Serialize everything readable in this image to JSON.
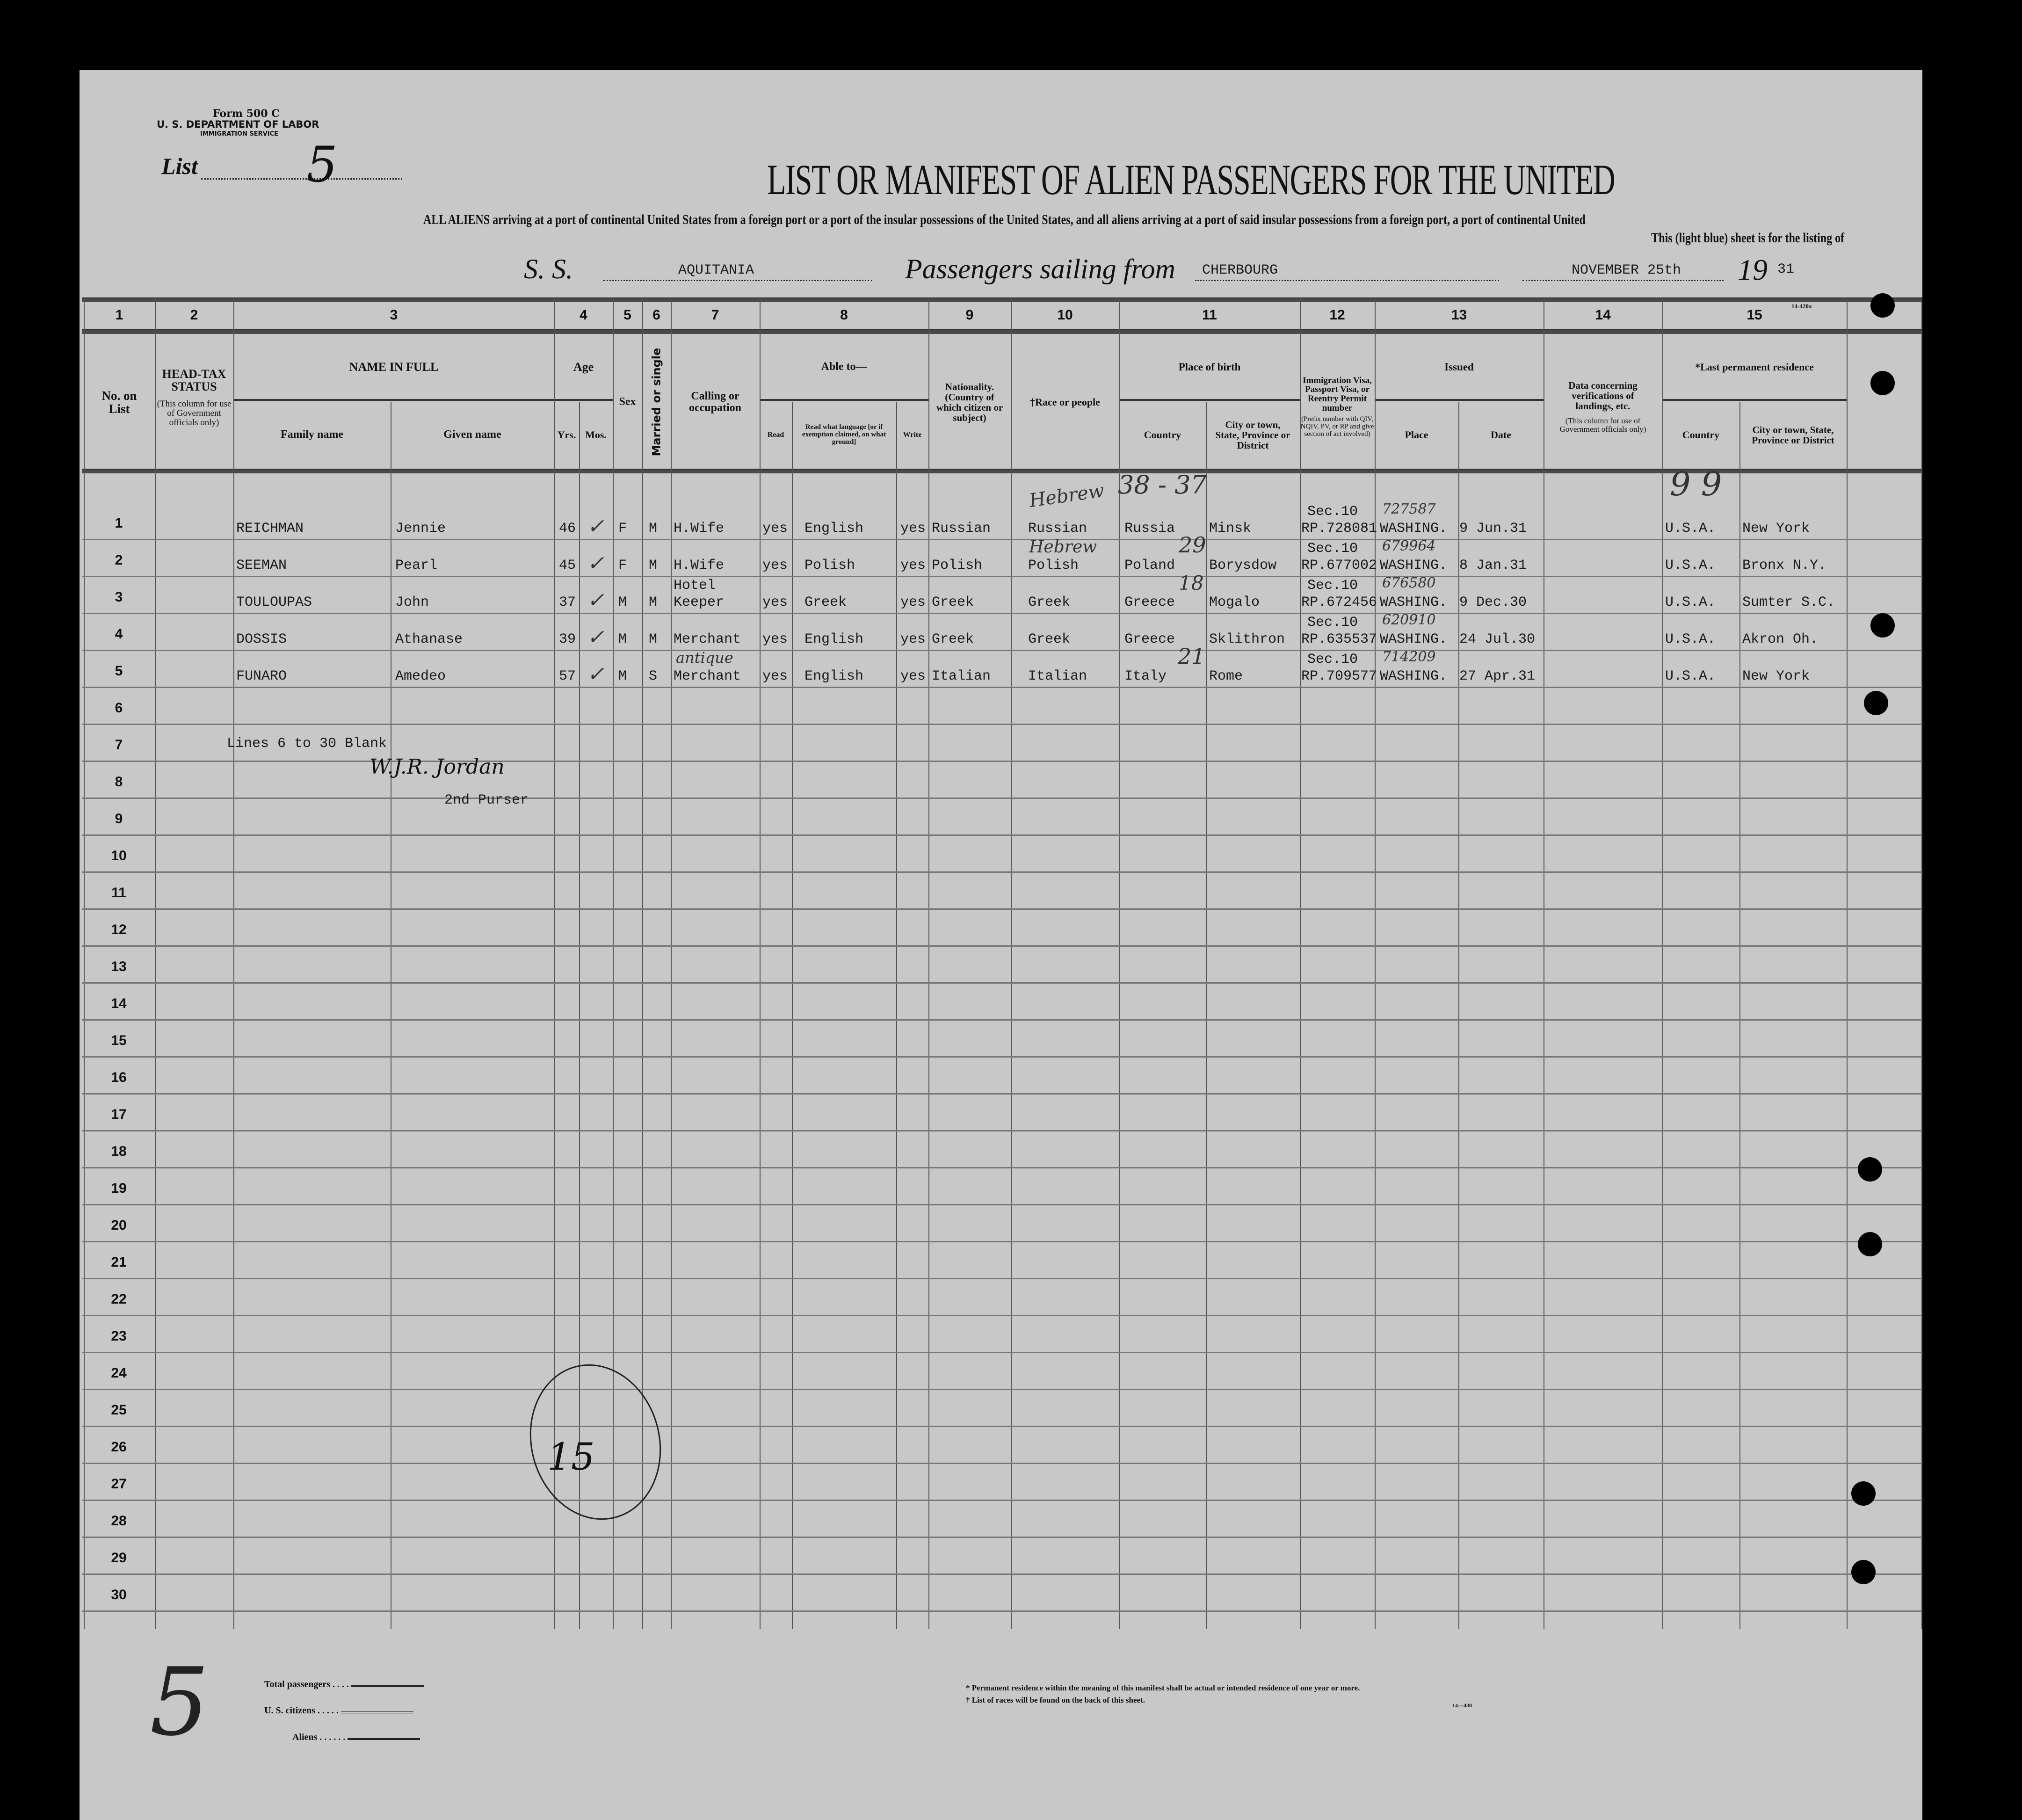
{
  "form": {
    "form_number": "Form 500 C",
    "department": "U. S. DEPARTMENT OF LABOR",
    "service": "IMMIGRATION SERVICE",
    "list_label": "List",
    "list_number": "5"
  },
  "title": "LIST OR MANIFEST OF ALIEN PASSENGERS FOR THE UNITED",
  "subtitle_line1": "ALL ALIENS arriving at a port of continental United States from a foreign port or a port of the insular possessions of the United States, and all aliens arriving at a port of said insular possessions from a foreign port, a port of continental United",
  "subtitle_line2": "This (light blue) sheet is for the listing of",
  "voyage": {
    "ss_label": "S. S.",
    "ship": "AQUITANIA",
    "sailing_label": "Passengers sailing from",
    "port": "CHERBOURG",
    "date": "NOVEMBER 25th",
    "year_prefix": "19",
    "year_suffix": "31"
  },
  "form_code_top": "14-420a",
  "column_numbers": [
    "1",
    "2",
    "3",
    "4",
    "5",
    "6",
    "7",
    "8",
    "9",
    "10",
    "11",
    "12",
    "13",
    "14",
    "15"
  ],
  "headers": {
    "no_on_list": "No. on List",
    "head_tax": "HEAD-TAX STATUS",
    "head_tax_note": "(This column for use of Government officials only)",
    "name_in_full": "NAME IN FULL",
    "family_name": "Family name",
    "given_name": "Given name",
    "age": "Age",
    "yrs": "Yrs.",
    "mos": "Mos.",
    "sex": "Sex",
    "married": "Married or single",
    "calling": "Calling or occupation",
    "able_to": "Able to—",
    "read": "Read",
    "read_lang": "Read what language [or if exemption claimed, on what ground]",
    "write": "Write",
    "nationality": "Nationality. (Country of which citizen or subject)",
    "race": "†Race or people",
    "place_of_birth": "Place of birth",
    "birth_country": "Country",
    "birth_city": "City or town, State, Province or District",
    "visa": "Immigration Visa, Passport Visa, or Reentry Permit number",
    "visa_note": "(Prefix number with QIV, NQIV, PV, or RP and give section of act involved)",
    "issued": "Issued",
    "issued_place": "Place",
    "issued_date": "Date",
    "verification": "Data concerning verifications of landings, etc.",
    "verification_note": "(This column for use of Government officials only)",
    "last_residence": "*Last permanent residence",
    "res_country": "Country",
    "res_city": "City or town, State, Province or District"
  },
  "row_numbers": [
    "1",
    "2",
    "3",
    "4",
    "5",
    "6",
    "7",
    "8",
    "9",
    "10",
    "11",
    "12",
    "13",
    "14",
    "15",
    "16",
    "17",
    "18",
    "19",
    "20",
    "21",
    "22",
    "23",
    "24",
    "25",
    "26",
    "27",
    "28",
    "29",
    "30"
  ],
  "passengers": [
    {
      "family": "REICHMAN",
      "given": "Jennie",
      "yrs": "46",
      "sex": "F",
      "marital": "M",
      "occupation": "H.Wife",
      "read": "yes",
      "read_lang": "English",
      "write": "yes",
      "nationality": "Russian",
      "race": "Russian",
      "birth_country": "Russia",
      "birth_city": "Minsk",
      "visa_sec": "Sec.10",
      "visa_no": "RP.728081",
      "issued_place": "WASHING.",
      "issued_date": "9 Jun.31",
      "res_country": "U.S.A.",
      "res_city": "New York"
    },
    {
      "family": "SEEMAN",
      "given": "Pearl",
      "yrs": "45",
      "sex": "F",
      "marital": "M",
      "occupation": "H.Wife",
      "read": "yes",
      "read_lang": "Polish",
      "write": "yes",
      "nationality": "Polish",
      "race": "Polish",
      "birth_country": "Poland",
      "birth_city": "Borysdow",
      "visa_sec": "Sec.10",
      "visa_no": "RP.677002",
      "issued_place": "WASHING.",
      "issued_date": "8 Jan.31",
      "res_country": "U.S.A.",
      "res_city": "Bronx N.Y."
    },
    {
      "family": "TOULOUPAS",
      "given": "John",
      "yrs": "37",
      "sex": "M",
      "marital": "M",
      "occupation": "Hotel Keeper",
      "read": "yes",
      "read_lang": "Greek",
      "write": "yes",
      "nationality": "Greek",
      "race": "Greek",
      "birth_country": "Greece",
      "birth_city": "Mogalo",
      "visa_sec": "Sec.10",
      "visa_no": "RP.672456",
      "issued_place": "WASHING.",
      "issued_date": "9 Dec.30",
      "res_country": "U.S.A.",
      "res_city": "Sumter S.C."
    },
    {
      "family": "DOSSIS",
      "given": "Athanase",
      "yrs": "39",
      "sex": "M",
      "marital": "M",
      "occupation": "Merchant",
      "read": "yes",
      "read_lang": "English",
      "write": "yes",
      "nationality": "Greek",
      "race": "Greek",
      "birth_country": "Greece",
      "birth_city": "Sklithron",
      "visa_sec": "Sec.10",
      "visa_no": "RP.635537",
      "issued_place": "WASHING.",
      "issued_date": "24 Jul.30",
      "res_country": "U.S.A.",
      "res_city": "Akron Oh."
    },
    {
      "family": "FUNARO",
      "given": "Amedeo",
      "yrs": "57",
      "sex": "M",
      "marital": "S",
      "occupation": "Merchant",
      "read": "yes",
      "read_lang": "English",
      "write": "yes",
      "nationality": "Italian",
      "race": "Italian",
      "birth_country": "Italy",
      "birth_city": "Rome",
      "visa_sec": "Sec.10",
      "visa_no": "RP.709577",
      "issued_place": "WASHING.",
      "issued_date": "27 Apr.31",
      "res_country": "U.S.A.",
      "res_city": "New York"
    }
  ],
  "blank_note": "Lines 6 to 30 Blank",
  "signature": "W.J.R. Jordan",
  "signer_title": "2nd Purser",
  "annotations": {
    "race_1": "Hebrew",
    "race_2": "Hebrew",
    "permit_1": "727587",
    "permit_2": "679964",
    "permit_3": "676580",
    "permit_4": "620910",
    "permit_5": "714209",
    "birth_1": "38 - 37",
    "birth_2": "29",
    "birth_3": "18",
    "birth_5": "21",
    "res_top": "9 9",
    "occupation_5": "antique",
    "circled_count": "15",
    "list_mark": "5"
  },
  "footer": {
    "total_passengers": "Total passengers",
    "us_citizens": "U. S. citizens",
    "aliens": "Aliens",
    "note_residence": "* Permanent residence within the meaning of this manifest shall be actual or intended residence of one year or more.",
    "note_races": "† List of races will be found on the back of this sheet.",
    "form_code": "14—430"
  },
  "colors": {
    "paper": "#c8c8c8",
    "background": "#000000",
    "ink": "#111111"
  }
}
